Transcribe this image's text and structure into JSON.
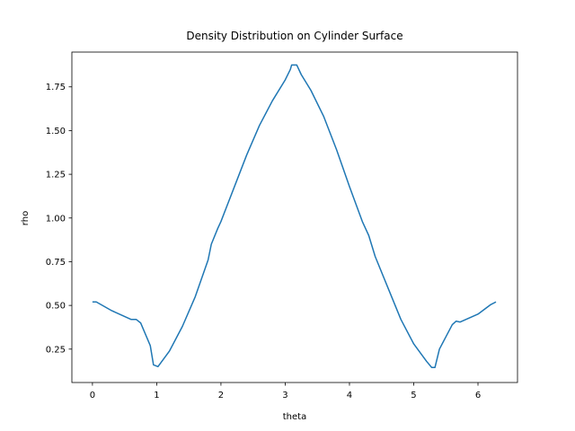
{
  "chart_data": {
    "type": "line",
    "title": "Density Distribution on Cylinder Surface",
    "x_label": "theta",
    "y_label": "rho",
    "x": [
      0,
      0.06,
      0.3,
      0.6,
      0.68,
      0.75,
      0.9,
      0.95,
      1.02,
      1.2,
      1.4,
      1.6,
      1.8,
      1.85,
      1.95,
      2.0,
      2.2,
      2.4,
      2.6,
      2.8,
      3.0,
      3.08,
      3.1,
      3.18,
      3.25,
      3.4,
      3.6,
      3.8,
      4.0,
      4.2,
      4.3,
      4.4,
      4.6,
      4.8,
      5.0,
      5.2,
      5.28,
      5.33,
      5.4,
      5.5,
      5.6,
      5.66,
      5.72,
      6.0,
      6.2,
      6.28
    ],
    "series": [
      {
        "name": "rho",
        "color": "#1f77b4",
        "values": [
          0.52,
          0.52,
          0.47,
          0.42,
          0.42,
          0.4,
          0.27,
          0.16,
          0.15,
          0.24,
          0.38,
          0.55,
          0.76,
          0.85,
          0.94,
          0.98,
          1.17,
          1.36,
          1.53,
          1.67,
          1.79,
          1.85,
          1.875,
          1.875,
          1.82,
          1.73,
          1.58,
          1.39,
          1.18,
          0.98,
          0.9,
          0.78,
          0.6,
          0.42,
          0.28,
          0.18,
          0.145,
          0.145,
          0.25,
          0.32,
          0.39,
          0.41,
          0.405,
          0.45,
          0.505,
          0.52
        ]
      }
    ],
    "xlim": [
      -0.32,
      6.615
    ],
    "ylim": [
      0.059,
      1.949
    ],
    "xticks": [
      0,
      1,
      2,
      3,
      4,
      5,
      6
    ],
    "yticks": [
      0.25,
      {
        "value": 0.5,
        "label": "0.50"
      },
      0.75,
      {
        "value": 1.0,
        "label": "1.00"
      },
      1.25,
      {
        "value": 1.5,
        "label": "1.50"
      },
      1.75
    ],
    "grid": false
  }
}
